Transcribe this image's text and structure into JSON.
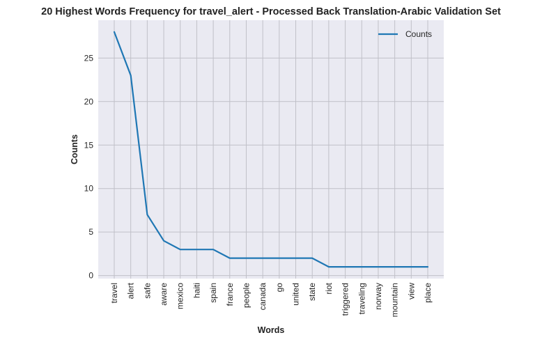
{
  "chart_data": {
    "type": "line",
    "title": "20 Highest Words Frequency for travel_alert - Processed Back Translation-Arabic Validation Set",
    "xlabel": "Words",
    "ylabel": "Counts",
    "categories": [
      "travel",
      "alert",
      "safe",
      "aware",
      "mexico",
      "haiti",
      "spain",
      "france",
      "people",
      "canada",
      "go",
      "united",
      "state",
      "riot",
      "triggered",
      "traveling",
      "norway",
      "mountain",
      "view",
      "place"
    ],
    "series": [
      {
        "name": "Counts",
        "values": [
          28,
          23,
          7,
          4,
          3,
          3,
          3,
          2,
          2,
          2,
          2,
          2,
          2,
          1,
          1,
          1,
          1,
          1,
          1,
          1
        ]
      }
    ],
    "yticks": [
      0,
      5,
      10,
      15,
      20,
      25
    ],
    "ylim": [
      -0.35,
      29.35
    ],
    "grid": true,
    "legend_position": "top-right",
    "colors": {
      "line": "#1f77b4",
      "plot_background": "#eaeaf2",
      "grid": "#c0c0c8"
    }
  }
}
